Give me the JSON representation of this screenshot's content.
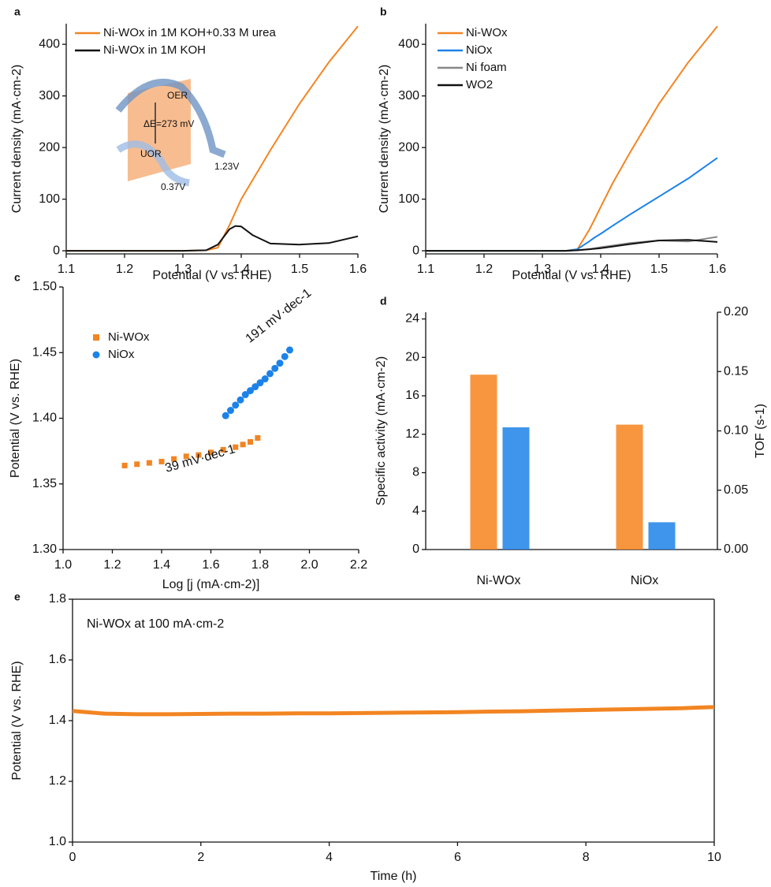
{
  "chart_data": [
    {
      "type": "line",
      "panel_label": "a",
      "xlabel": "Potential (V vs. RHE)",
      "ylabel": "Current density (mA·cm-2)",
      "xlim": [
        1.1,
        1.6
      ],
      "xticks": [
        1.1,
        1.2,
        1.3,
        1.4,
        1.5,
        1.6
      ],
      "ylim": [
        -6,
        440
      ],
      "yticks": [
        0,
        100,
        200,
        300,
        400
      ],
      "legend": "upper left",
      "x": [
        1.1,
        1.15,
        1.2,
        1.25,
        1.3,
        1.34,
        1.36,
        1.38,
        1.39,
        1.4,
        1.42,
        1.45,
        1.5,
        1.55,
        1.6
      ],
      "series": [
        {
          "name": "Ni-WOx in 1M KOH+0.33 M urea",
          "color": "#f28522",
          "values": [
            0,
            0,
            0,
            0,
            0,
            1,
            6,
            50,
            75,
            100,
            138,
            195,
            285,
            365,
            435
          ]
        },
        {
          "name": "Ni-WOx in 1M KOH",
          "color": "#111111",
          "values": [
            0,
            0,
            0,
            0,
            0,
            1,
            12,
            42,
            48,
            47,
            30,
            14,
            12,
            15,
            28
          ]
        }
      ],
      "annotations": [
        "OER",
        "ΔE=273 mV",
        "UOR",
        "1.23V",
        "0.37V"
      ]
    },
    {
      "type": "line",
      "panel_label": "b",
      "xlabel": "Potential (V vs. RHE)",
      "ylabel": "Current density (mA·cm-2)",
      "xlim": [
        1.1,
        1.6
      ],
      "xticks": [
        1.1,
        1.2,
        1.3,
        1.4,
        1.5,
        1.6
      ],
      "ylim": [
        -6,
        440
      ],
      "yticks": [
        0,
        100,
        200,
        300,
        400
      ],
      "legend": "upper left",
      "x": [
        1.1,
        1.15,
        1.2,
        1.25,
        1.3,
        1.34,
        1.36,
        1.38,
        1.39,
        1.4,
        1.42,
        1.45,
        1.5,
        1.55,
        1.6
      ],
      "series": [
        {
          "name": "Ni-WOx",
          "color": "#f28522",
          "values": [
            0,
            0,
            0,
            0,
            0,
            0,
            3,
            40,
            62,
            85,
            130,
            190,
            285,
            365,
            435
          ]
        },
        {
          "name": "NiOx",
          "color": "#1c82e8",
          "values": [
            0,
            0,
            0,
            0,
            0,
            0,
            3,
            18,
            26,
            33,
            48,
            70,
            105,
            140,
            180
          ]
        },
        {
          "name": "Ni foam",
          "color": "#888888",
          "values": [
            0,
            0,
            0,
            0,
            0,
            0,
            1,
            3,
            5,
            7,
            10,
            15,
            20,
            18,
            27
          ]
        },
        {
          "name": "WO2",
          "color": "#111111",
          "values": [
            0,
            0,
            0,
            0,
            0,
            0,
            1,
            3,
            4,
            5,
            8,
            13,
            20,
            21,
            17
          ]
        }
      ]
    },
    {
      "type": "scatter",
      "panel_label": "c",
      "xlabel": "Log [j (mA·cm-2)]",
      "ylabel": "Potential (V vs. RHE)",
      "xlim": [
        1.0,
        2.2
      ],
      "xticks": [
        {
          "value": 1.0,
          "label": "1.0"
        },
        1.2,
        1.4,
        1.6,
        1.8,
        {
          "value": 2.0,
          "label": "2.0"
        },
        2.2
      ],
      "ylim": [
        1.3,
        1.5
      ],
      "yticks": [
        {
          "value": 1.3,
          "label": "1.30"
        },
        1.35,
        {
          "value": 1.4,
          "label": "1.40"
        },
        1.45,
        {
          "value": 1.5,
          "label": "1.50"
        }
      ],
      "legend": "upper left",
      "series": [
        {
          "name": "Ni-WOx",
          "color": "#f28522",
          "marker": "square",
          "x": [
            1.25,
            1.3,
            1.35,
            1.4,
            1.45,
            1.5,
            1.55,
            1.6,
            1.65,
            1.7,
            1.73,
            1.76,
            1.79
          ],
          "values": [
            1.364,
            1.365,
            1.366,
            1.367,
            1.369,
            1.371,
            1.372,
            1.374,
            1.376,
            1.378,
            1.38,
            1.382,
            1.385
          ]
        },
        {
          "name": "NiOx",
          "color": "#1c82e8",
          "marker": "circle",
          "x": [
            1.66,
            1.68,
            1.7,
            1.72,
            1.74,
            1.76,
            1.78,
            1.8,
            1.82,
            1.84,
            1.86,
            1.88,
            1.9,
            1.92
          ],
          "values": [
            1.402,
            1.406,
            1.41,
            1.414,
            1.418,
            1.421,
            1.424,
            1.427,
            1.43,
            1.434,
            1.438,
            1.442,
            1.447,
            1.452
          ]
        }
      ],
      "annotations": [
        "39 mV·dec-1",
        "191 mV·dec-1"
      ]
    },
    {
      "type": "bar",
      "panel_label": "d",
      "ylabel": "Specific activity (mA·cm-2)",
      "y2label": "TOF (s-1)",
      "categories": [
        "Ni-WOx",
        "NiOx"
      ],
      "ylim": [
        0,
        24.7
      ],
      "yticks": [
        0,
        4,
        8,
        12,
        16,
        20,
        24
      ],
      "y2lim": [
        0,
        0.2
      ],
      "y2ticks": [
        {
          "value": 0,
          "label": "0.00"
        },
        0.05,
        {
          "value": 0.1,
          "label": "0.10"
        },
        0.15,
        {
          "value": 0.2,
          "label": "0.20"
        }
      ],
      "series": [
        {
          "color": "#f7841e",
          "values": [
            18.2,
            13.0
          ]
        },
        {
          "color": "#1c82e8",
          "values": [
            0.103,
            0.023
          ],
          "axis": "y2"
        }
      ]
    },
    {
      "type": "line",
      "panel_label": "e",
      "xlabel": "Time (h)",
      "ylabel": "Potential (V vs. RHE)",
      "xlim": [
        0,
        10
      ],
      "xticks": [
        0,
        2,
        4,
        6,
        8,
        10
      ],
      "ylim": [
        1.0,
        1.8
      ],
      "yticks": [
        {
          "value": 1.0,
          "label": "1.0"
        },
        1.2,
        1.4,
        1.6,
        1.8
      ],
      "x": [
        0,
        0.5,
        1,
        1.5,
        2,
        2.5,
        3,
        3.5,
        4,
        4.5,
        5,
        5.5,
        6,
        6.5,
        7,
        7.5,
        8,
        8.5,
        9,
        9.5,
        10
      ],
      "series": [
        {
          "color": "#f28522",
          "values": [
            1.432,
            1.423,
            1.421,
            1.421,
            1.422,
            1.423,
            1.423,
            1.424,
            1.424,
            1.425,
            1.426,
            1.427,
            1.428,
            1.43,
            1.431,
            1.433,
            1.435,
            1.437,
            1.439,
            1.441,
            1.445
          ]
        }
      ],
      "annotations": [
        "Ni-WOx at 100 mA·cm-2"
      ]
    }
  ]
}
